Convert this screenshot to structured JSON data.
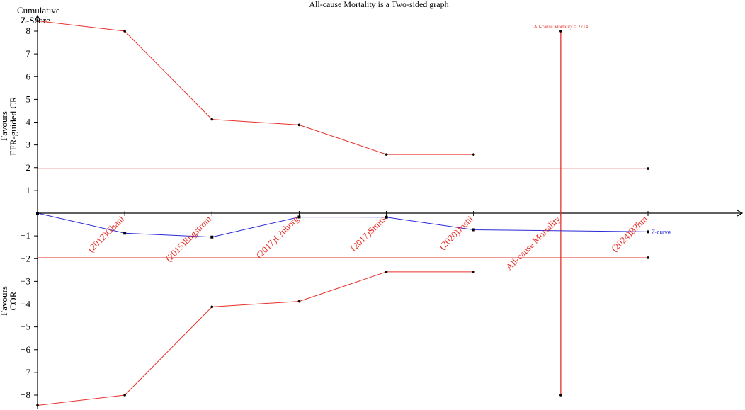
{
  "chart_data": {
    "type": "line",
    "title": "All-cause Mortality is a Two-sided graph",
    "ylabel_line1": "Cumulative",
    "ylabel_line2": "Z-Score",
    "favours_top_line1": "Favours",
    "favours_top_line2": "FFR-guided CR",
    "favours_bottom_line1": "Favours",
    "favours_bottom_line2": "COR",
    "ylim": [
      -8.5,
      8.5
    ],
    "xlim": [
      0,
      2900
    ],
    "y_ticks": [
      8,
      7,
      6,
      5,
      4,
      3,
      2,
      1,
      -1,
      -2,
      -3,
      -4,
      -5,
      -6,
      -7,
      -8
    ],
    "x_positions": [
      0,
      369,
      738,
      1107,
      1476,
      1845,
      2214,
      2583
    ],
    "x_labels": [
      "(2012)Ghani",
      "(2015)Engstrom",
      "(2017)L?nborg",
      "(2017)Smits",
      "(2020)Joshi",
      "All-cause Mortality",
      "(2024)B?hm"
    ],
    "x_label_positions": [
      369,
      738,
      1107,
      1476,
      1845,
      2214,
      2583
    ],
    "series": [
      {
        "name": "Z-curve",
        "color": "#2a2ad8",
        "x": [
          0,
          369,
          738,
          1107,
          1476,
          1845,
          2583
        ],
        "y": [
          0,
          -0.88,
          -1.05,
          -0.17,
          -0.18,
          -0.73,
          -0.82
        ]
      },
      {
        "name": "upper monitoring boundary",
        "color": "#e8302a",
        "x": [
          0,
          369,
          738,
          1107,
          1476,
          1845
        ],
        "y": [
          8.45,
          8.0,
          4.12,
          3.88,
          2.58,
          2.58
        ]
      },
      {
        "name": "lower monitoring boundary",
        "color": "#e8302a",
        "x": [
          0,
          369,
          738,
          1107,
          1476,
          1845
        ],
        "y": [
          -8.45,
          -8.0,
          -4.12,
          -3.88,
          -2.58,
          -2.58
        ]
      }
    ],
    "conventional_boundaries": [
      1.96,
      -1.96
    ],
    "conventional_boundary_colors": [
      "#f2a6a6",
      "#e8302a"
    ],
    "conventional_boundary_end_x": 2583,
    "required_information_size": {
      "label": "All-cause Mortality = 2714",
      "x": 2214,
      "y_top": 8.0,
      "y_bottom": -8.0,
      "color": "#e8302a"
    },
    "zcurve_label": "Z-curve",
    "colors": {
      "zcurve": "#2a2ad8",
      "boundary": "#e8302a",
      "axis": "#000000"
    }
  }
}
